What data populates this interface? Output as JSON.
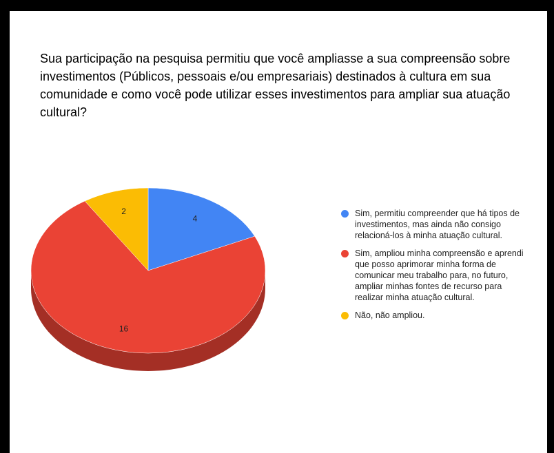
{
  "chart_data": {
    "type": "pie",
    "title": "Sua participação na pesquisa permitiu que você ampliasse a sua compreensão sobre investimentos (Públicos, pessoais e/ou empresariais) destinados à cultura em sua comunidade e como você pode utilizar esses investimentos para ampliar sua atuação cultural?",
    "categories": [
      "Sim, permitiu compreender que há tipos de investimentos, mas ainda não consigo relacioná-los à minha atuação cultural.",
      "Sim, ampliou minha compreensão e aprendi que posso aprimorar minha forma de comunicar meu trabalho para, no futuro, ampliar minhas fontes de recurso para realizar minha atuação cultural.",
      "Não, não ampliou."
    ],
    "values": [
      4,
      16,
      2
    ],
    "colors": [
      "#4285f4",
      "#ea4335",
      "#fbbc04"
    ],
    "legend": "right"
  }
}
